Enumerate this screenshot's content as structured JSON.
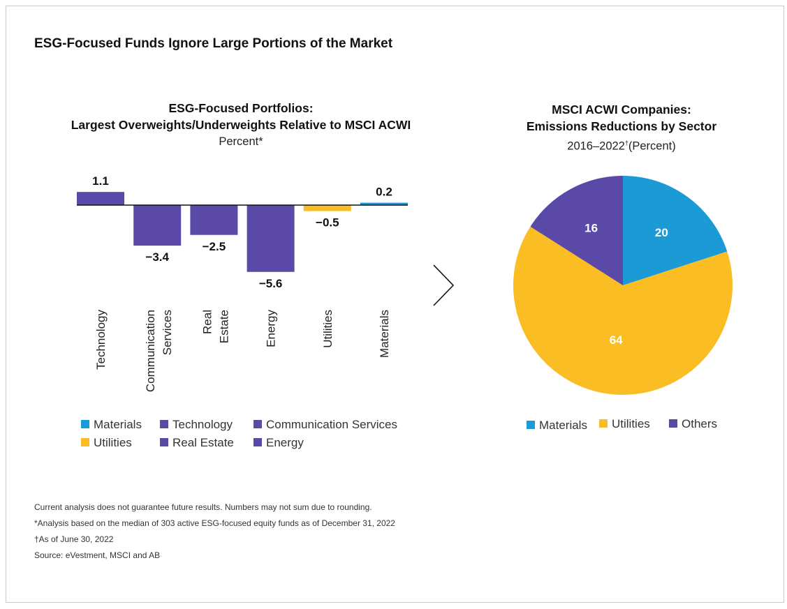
{
  "page": {
    "title": "ESG-Focused Funds Ignore Large Portions of the Market",
    "footnotes": [
      "Current analysis does not guarantee future results. Numbers may not sum due to rounding.",
      "*Analysis based on the median of 303 active ESG-focused equity funds as of December 31, 2022",
      "†As of June 30, 2022",
      "Source: eVestment, MSCI and AB"
    ]
  },
  "colors": {
    "blue": "#1b9ad6",
    "purple": "#5b49a7",
    "yellow": "#fbbd24",
    "line": "#111111"
  },
  "chart_data": [
    {
      "type": "bar",
      "title_line1": "ESG-Focused Portfolios:",
      "title_line2": "Largest Overweights/Underweights Relative to MSCI ACWI",
      "subtitle": "Percent*",
      "categories": [
        "Technology",
        "Communication Services",
        "Real Estate",
        "Energy",
        "Utilities",
        "Materials"
      ],
      "values": [
        1.1,
        -3.4,
        -2.5,
        -5.6,
        -0.5,
        0.2
      ],
      "value_labels": [
        "1.1",
        "−3.4",
        "−2.5",
        "−5.6",
        "−0.5",
        "0.2"
      ],
      "category_colors": [
        "#5b49a7",
        "#5b49a7",
        "#5b49a7",
        "#5b49a7",
        "#fbbd24",
        "#1b9ad6"
      ],
      "legend": [
        {
          "label": "Materials",
          "color": "#1b9ad6"
        },
        {
          "label": "Technology",
          "color": "#5b49a7"
        },
        {
          "label": "Communication Services",
          "color": "#5b49a7"
        },
        {
          "label": "Utilities",
          "color": "#fbbd24"
        },
        {
          "label": "Real Estate",
          "color": "#5b49a7"
        },
        {
          "label": "Energy",
          "color": "#5b49a7"
        }
      ],
      "grid": false,
      "ylim": [
        -5.6,
        1.1
      ]
    },
    {
      "type": "pie",
      "title_line1": "MSCI ACWI Companies:",
      "title_line2": "Emissions Reductions by Sector",
      "subtitle_main": "2016–2022",
      "subtitle_sup": "†",
      "subtitle_tail": "(Percent)",
      "slices": [
        {
          "label": "Materials",
          "value": 20,
          "color": "#1b9ad6"
        },
        {
          "label": "Utilities",
          "value": 64,
          "color": "#fbbd24"
        },
        {
          "label": "Others",
          "value": 16,
          "color": "#5b49a7"
        }
      ],
      "legend": [
        {
          "label": "Materials",
          "color": "#1b9ad6"
        },
        {
          "label": "Utilities",
          "color": "#fbbd24"
        },
        {
          "label": "Others",
          "color": "#5b49a7"
        }
      ]
    }
  ]
}
